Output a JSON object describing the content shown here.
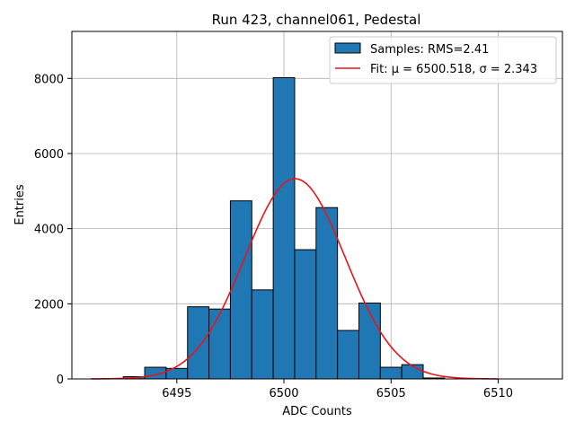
{
  "chart_data": {
    "type": "histogram",
    "title": "Run 423, channel061, Pedestal",
    "xlabel": "ADC Counts",
    "ylabel": "Entries",
    "xlim": [
      6490.1,
      6513.0
    ],
    "ylim": [
      0,
      9250
    ],
    "grid": true,
    "legend_position": "top-right",
    "x_ticks": [
      6495,
      6500,
      6505,
      6510
    ],
    "y_ticks": [
      0,
      2000,
      4000,
      6000,
      8000
    ],
    "bin_width": 1,
    "bins": [
      {
        "left": 6492.5,
        "count": 60
      },
      {
        "left": 6493.5,
        "count": 310
      },
      {
        "left": 6494.5,
        "count": 280
      },
      {
        "left": 6495.5,
        "count": 1920
      },
      {
        "left": 6496.5,
        "count": 1860
      },
      {
        "left": 6497.5,
        "count": 4740
      },
      {
        "left": 6498.5,
        "count": 2370
      },
      {
        "left": 6499.5,
        "count": 8020
      },
      {
        "left": 6500.5,
        "count": 3440
      },
      {
        "left": 6501.5,
        "count": 4560
      },
      {
        "left": 6502.5,
        "count": 1290
      },
      {
        "left": 6503.5,
        "count": 2020
      },
      {
        "left": 6504.5,
        "count": 310
      },
      {
        "left": 6505.5,
        "count": 380
      },
      {
        "left": 6506.5,
        "count": 25
      }
    ],
    "fit": {
      "mu": 6500.518,
      "sigma": 2.343,
      "amplitude": 5330,
      "x_range": [
        6491,
        6510
      ]
    },
    "series": [
      {
        "name": "Samples: RMS=2.41",
        "kind": "bar",
        "color": "#1f77b4"
      },
      {
        "name": "Fit: μ = 6500.518, σ = 2.343",
        "kind": "line",
        "color": "#e8141a"
      }
    ]
  }
}
